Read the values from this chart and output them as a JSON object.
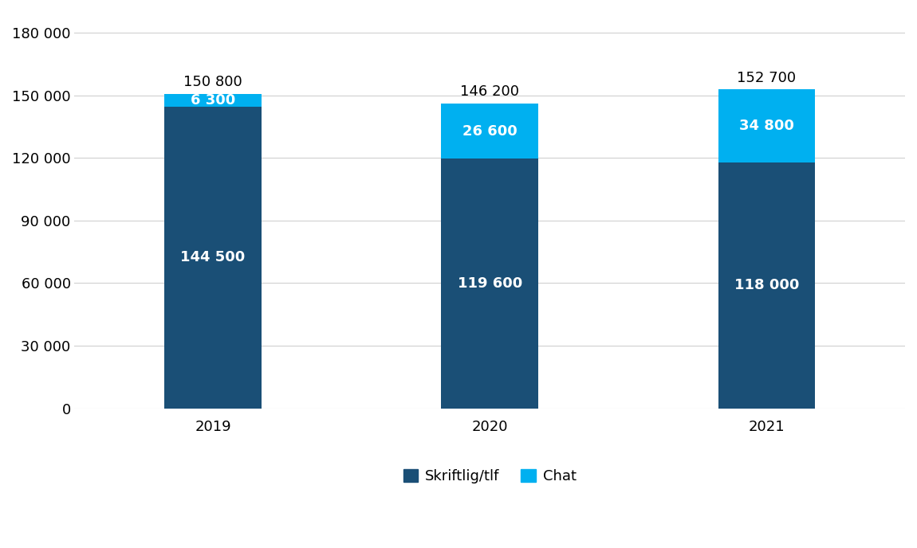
{
  "categories": [
    "2019",
    "2020",
    "2021"
  ],
  "skriftlig_values": [
    144500,
    119600,
    118000
  ],
  "chat_values": [
    6300,
    26600,
    34800
  ],
  "totals": [
    150800,
    146200,
    152700
  ],
  "total_labels": [
    "150 800",
    "146 200",
    "152 700"
  ],
  "skriftlig_labels": [
    "144 500",
    "119 600",
    "118 000"
  ],
  "chat_labels": [
    "6 300",
    "26 600",
    "34 800"
  ],
  "color_skriftlig": "#1a4f76",
  "color_chat": "#00b0f0",
  "legend_labels": [
    "Skriftlig/tlf",
    "Chat"
  ],
  "ylim": [
    0,
    190000
  ],
  "yticks": [
    0,
    30000,
    60000,
    90000,
    120000,
    150000,
    180000
  ],
  "background_color": "#ffffff",
  "bar_width": 0.35,
  "font_size_labels": 13,
  "font_size_ticks": 13,
  "font_size_legend": 13,
  "font_size_total": 13
}
